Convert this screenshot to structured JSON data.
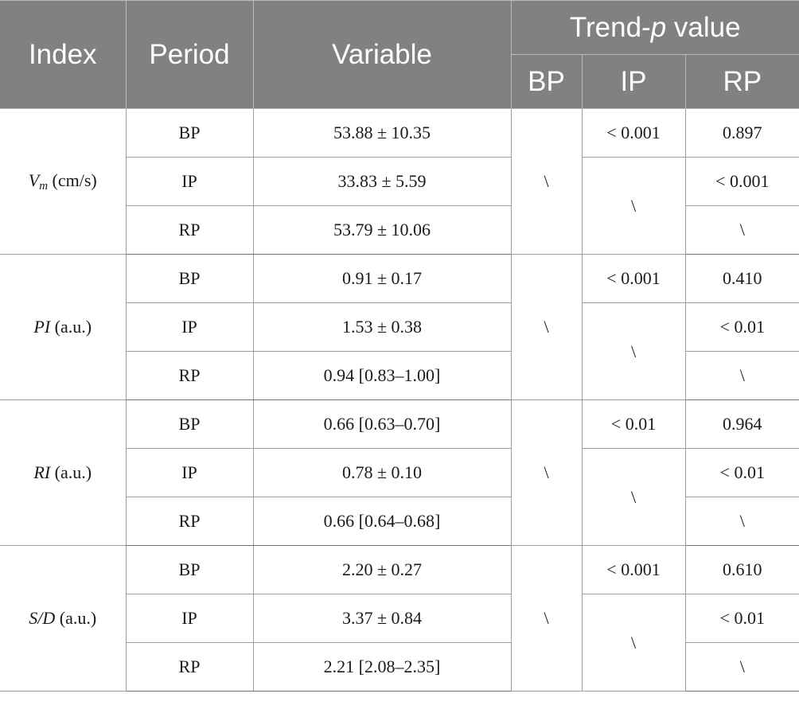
{
  "header": {
    "index": "Index",
    "period": "Period",
    "variable": "Variable",
    "trend_pre": "Trend-",
    "trend_p": "p",
    "trend_post": " value",
    "sub_bp": "BP",
    "sub_ip": "IP",
    "sub_rp": "RP"
  },
  "groups": [
    {
      "index_main": "V",
      "index_sub": "m",
      "index_unit": " (cm/s)",
      "bp_col": "\\",
      "ip_merged": "\\",
      "rows": [
        {
          "period": "BP",
          "variable": "53.88 ± 10.35",
          "ip": "< 0.001",
          "rp": "0.897"
        },
        {
          "period": "IP",
          "variable": "33.83 ± 5.59",
          "rp": "< 0.001"
        },
        {
          "period": "RP",
          "variable": "53.79 ± 10.06",
          "rp": "\\"
        }
      ]
    },
    {
      "index_main": "PI",
      "index_sub": "",
      "index_unit": " (a.u.)",
      "bp_col": "\\",
      "ip_merged": "\\",
      "rows": [
        {
          "period": "BP",
          "variable": "0.91 ± 0.17",
          "ip": "< 0.001",
          "rp": "0.410"
        },
        {
          "period": "IP",
          "variable": "1.53 ± 0.38",
          "rp": "< 0.01"
        },
        {
          "period": "RP",
          "variable": "0.94 [0.83–1.00]",
          "rp": "\\"
        }
      ]
    },
    {
      "index_main": "RI",
      "index_sub": "",
      "index_unit": " (a.u.)",
      "bp_col": "\\",
      "ip_merged": "\\",
      "rows": [
        {
          "period": "BP",
          "variable": "0.66 [0.63–0.70]",
          "ip": "< 0.01",
          "rp": "0.964"
        },
        {
          "period": "IP",
          "variable": "0.78 ± 0.10",
          "rp": "< 0.01"
        },
        {
          "period": "RP",
          "variable": "0.66 [0.64–0.68]",
          "rp": "\\"
        }
      ]
    },
    {
      "index_main": "S/D",
      "index_sub": "",
      "index_unit": " (a.u.)",
      "bp_col": "\\",
      "ip_merged": "\\",
      "rows": [
        {
          "period": "BP",
          "variable": "2.20 ± 0.27",
          "ip": "< 0.001",
          "rp": "0.610"
        },
        {
          "period": "IP",
          "variable": "3.37 ± 0.84",
          "rp": "< 0.01"
        },
        {
          "period": "RP",
          "variable": "2.21 [2.08–2.35]",
          "rp": "\\"
        }
      ]
    }
  ]
}
